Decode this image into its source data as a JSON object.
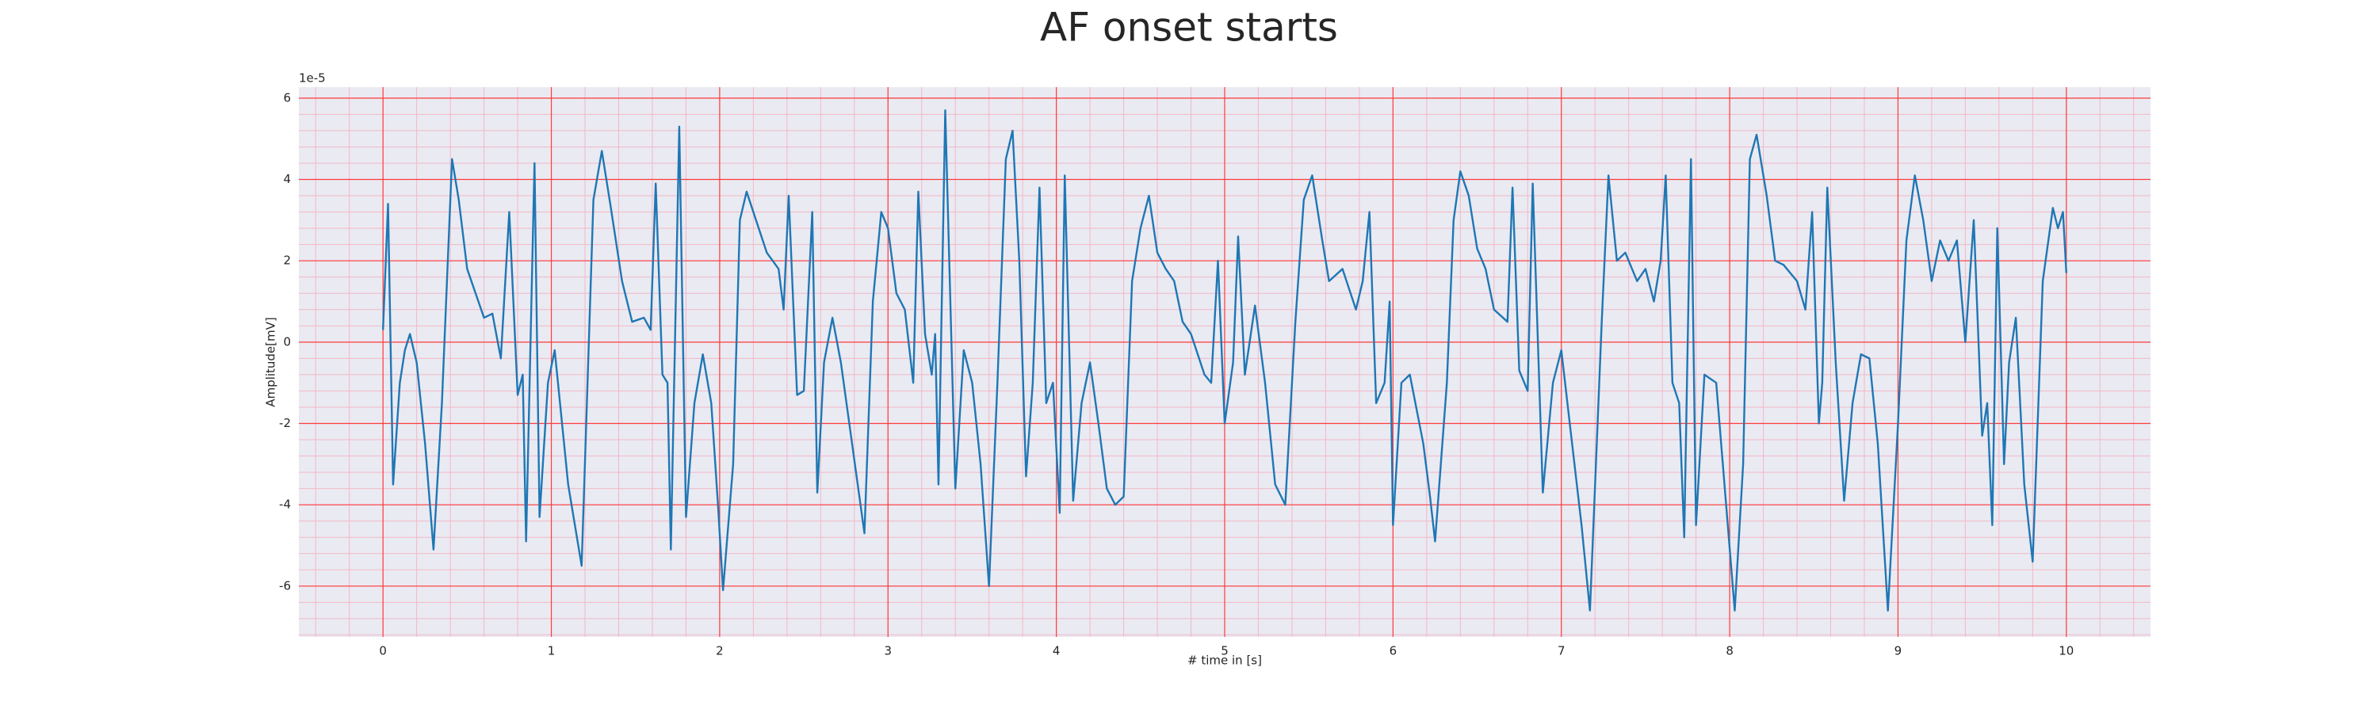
{
  "chart_data": {
    "type": "line",
    "title": "AF onset starts",
    "xlabel": "# time in [s]",
    "ylabel": "Amplitude[mV]",
    "y_offset_label": "1e-5",
    "x": [
      0.0,
      0.03,
      0.06,
      0.1,
      0.13,
      0.16,
      0.2,
      0.25,
      0.3,
      0.35,
      0.41,
      0.45,
      0.5,
      0.55,
      0.6,
      0.65,
      0.7,
      0.75,
      0.8,
      0.83,
      0.85,
      0.9,
      0.93,
      0.98,
      1.02,
      1.1,
      1.18,
      1.25,
      1.3,
      1.35,
      1.42,
      1.48,
      1.55,
      1.59,
      1.62,
      1.66,
      1.69,
      1.71,
      1.76,
      1.8,
      1.85,
      1.9,
      1.95,
      1.99,
      2.02,
      2.08,
      2.12,
      2.16,
      2.2,
      2.28,
      2.35,
      2.38,
      2.41,
      2.46,
      2.5,
      2.55,
      2.58,
      2.62,
      2.67,
      2.72,
      2.86,
      2.91,
      2.96,
      3.0,
      3.05,
      3.1,
      3.15,
      3.18,
      3.22,
      3.26,
      3.28,
      3.3,
      3.34,
      3.4,
      3.45,
      3.5,
      3.55,
      3.6,
      3.65,
      3.7,
      3.74,
      3.78,
      3.82,
      3.86,
      3.9,
      3.94,
      3.98,
      4.02,
      4.05,
      4.1,
      4.15,
      4.2,
      4.25,
      4.3,
      4.35,
      4.4,
      4.45,
      4.5,
      4.55,
      4.6,
      4.65,
      4.7,
      4.75,
      4.8,
      4.88,
      4.92,
      4.96,
      5.0,
      5.05,
      5.08,
      5.12,
      5.18,
      5.24,
      5.3,
      5.36,
      5.42,
      5.47,
      5.52,
      5.58,
      5.62,
      5.7,
      5.78,
      5.82,
      5.86,
      5.9,
      5.95,
      5.98,
      6.0,
      6.05,
      6.1,
      6.18,
      6.22,
      6.25,
      6.32,
      6.36,
      6.4,
      6.45,
      6.5,
      6.55,
      6.6,
      6.68,
      6.71,
      6.75,
      6.8,
      6.83,
      6.89,
      6.95,
      7.0,
      7.05,
      7.12,
      7.17,
      7.24,
      7.28,
      7.33,
      7.38,
      7.45,
      7.5,
      7.55,
      7.59,
      7.62,
      7.66,
      7.7,
      7.73,
      7.77,
      7.8,
      7.85,
      7.92,
      8.03,
      8.08,
      8.12,
      8.16,
      8.22,
      8.27,
      8.32,
      8.4,
      8.45,
      8.49,
      8.53,
      8.55,
      8.58,
      8.63,
      8.68,
      8.73,
      8.78,
      8.83,
      8.88,
      8.94,
      9.0,
      9.05,
      9.1,
      9.15,
      9.2,
      9.25,
      9.3,
      9.35,
      9.4,
      9.45,
      9.5,
      9.53,
      9.56,
      9.59,
      9.63,
      9.66,
      9.7,
      9.75,
      9.8,
      9.86,
      9.92,
      9.95,
      9.98,
      10.0
    ],
    "series": [
      {
        "name": "Amplitude",
        "color": "#1f77b4",
        "values": [
          0.3,
          3.4,
          -3.5,
          -1.0,
          -0.2,
          0.2,
          -0.5,
          -2.5,
          -5.1,
          -1.5,
          4.5,
          3.5,
          1.8,
          1.2,
          0.6,
          0.7,
          -0.4,
          3.2,
          -1.3,
          -0.8,
          -4.9,
          4.4,
          -4.3,
          -1.0,
          -0.2,
          -3.5,
          -5.5,
          3.5,
          4.7,
          3.4,
          1.5,
          0.5,
          0.6,
          0.3,
          3.9,
          -0.8,
          -1.0,
          -5.1,
          5.3,
          -4.3,
          -1.5,
          -0.3,
          -1.5,
          -4.0,
          -6.1,
          -3.0,
          3.0,
          3.7,
          3.2,
          2.2,
          1.8,
          0.8,
          3.6,
          -1.3,
          -1.2,
          3.2,
          -3.7,
          -0.5,
          0.6,
          -0.5,
          -4.7,
          1.0,
          3.2,
          2.8,
          1.2,
          0.8,
          -1.0,
          3.7,
          0.2,
          -0.8,
          0.2,
          -3.5,
          5.7,
          -3.6,
          -0.2,
          -1.0,
          -3.0,
          -6.0,
          -1.0,
          4.5,
          5.2,
          2.0,
          -3.3,
          -1.0,
          3.8,
          -1.5,
          -1.0,
          -4.2,
          4.1,
          -3.9,
          -1.5,
          -0.5,
          -2.0,
          -3.6,
          -4.0,
          -3.8,
          1.5,
          2.8,
          3.6,
          2.2,
          1.8,
          1.5,
          0.5,
          0.2,
          -0.8,
          -1.0,
          2.0,
          -2.0,
          -0.5,
          2.6,
          -0.8,
          0.9,
          -1.0,
          -3.5,
          -4.0,
          0.5,
          3.5,
          4.1,
          2.5,
          1.5,
          1.8,
          0.8,
          1.5,
          3.2,
          -1.5,
          -1.0,
          1.0,
          -4.5,
          -1.0,
          -0.8,
          -2.5,
          -3.8,
          -4.9,
          -1.0,
          3.0,
          4.2,
          3.6,
          2.3,
          1.8,
          0.8,
          0.5,
          3.8,
          -0.7,
          -1.2,
          3.9,
          -3.7,
          -1.0,
          -0.2,
          -2.0,
          -4.5,
          -6.6,
          0.5,
          4.1,
          2.0,
          2.2,
          1.5,
          1.8,
          1.0,
          2.0,
          4.1,
          -1.0,
          -1.5,
          -4.8,
          4.5,
          -4.5,
          -0.8,
          -1.0,
          -6.6,
          -3.0,
          4.5,
          5.1,
          3.6,
          2.0,
          1.9,
          1.5,
          0.8,
          3.2,
          -2.0,
          -1.0,
          3.8,
          -0.5,
          -3.9,
          -1.5,
          -0.3,
          -0.4,
          -2.5,
          -6.6,
          -2.0,
          2.5,
          4.1,
          3.0,
          1.5,
          2.5,
          2.0,
          2.5,
          0.0,
          3.0,
          -2.3,
          -1.5,
          -4.5,
          2.8,
          -3.0,
          -0.5,
          0.6,
          -3.5,
          -5.4,
          1.5,
          3.3,
          2.8,
          3.2,
          1.7
        ]
      }
    ],
    "xlim": [
      -0.5,
      10.5
    ],
    "ylim": [
      -7.25,
      6.27
    ],
    "xticks": [
      0,
      1,
      2,
      3,
      4,
      5,
      6,
      7,
      8,
      9,
      10
    ],
    "yticks": [
      -6,
      -4,
      -2,
      0,
      2,
      4,
      6
    ],
    "grid": true,
    "minor_grid": true,
    "grid_color": "#ff3b3b",
    "minor_grid_color": "#f2b8c6",
    "plot_background": "#eaeaf2"
  }
}
